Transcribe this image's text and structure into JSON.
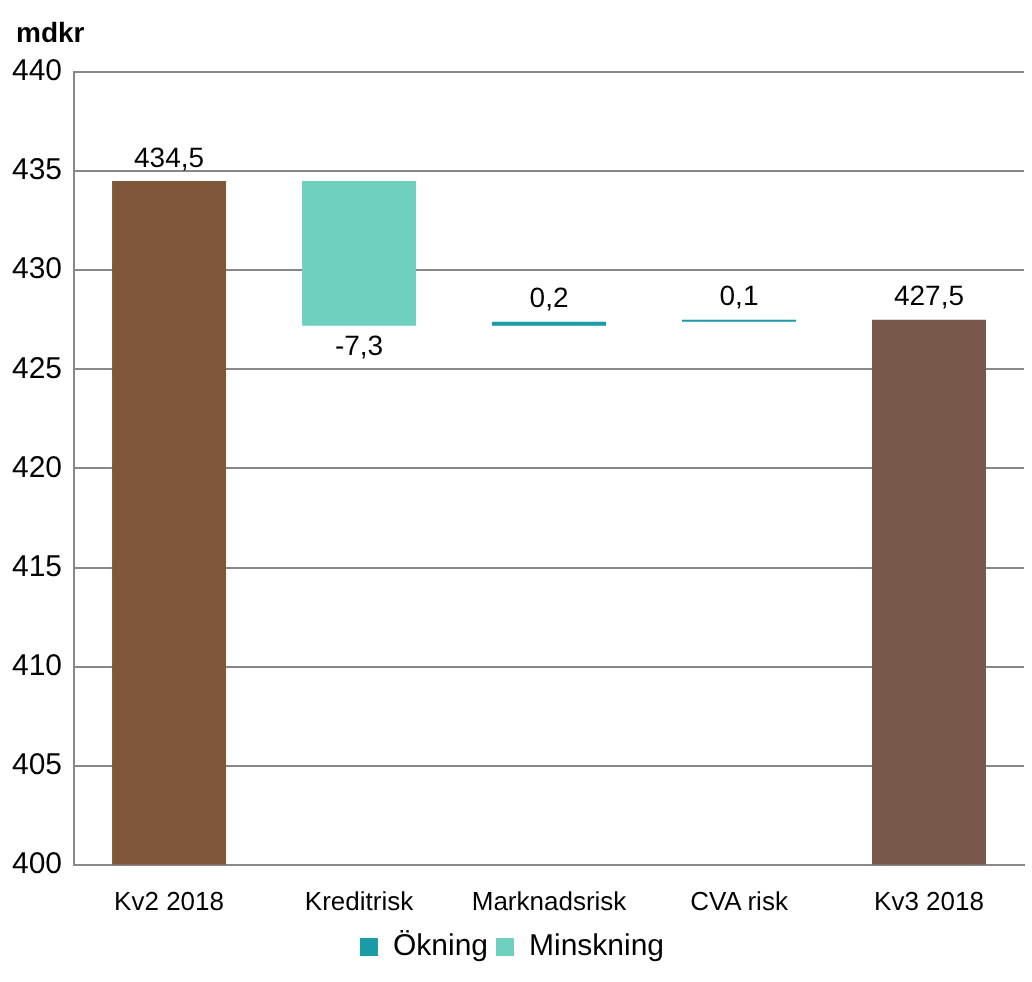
{
  "chart_data": {
    "type": "bar",
    "ylabel": "mdkr",
    "categories": [
      "Kv2 2018",
      "Kreditrisk",
      "Marknadsrisk",
      "CVA risk",
      "Kv3 2018"
    ],
    "series": [
      {
        "colors": [
          "#80573a",
          null,
          null,
          null,
          "#77584a"
        ],
        "values": [
          434.5,
          null,
          null,
          null,
          427.5
        ],
        "value_labels": [
          "434,5",
          null,
          null,
          null,
          "427,5"
        ]
      },
      {
        "name": "Ökning",
        "color": "#1b9aa8",
        "base": [
          null,
          null,
          427.2,
          427.4,
          null
        ],
        "values": [
          null,
          null,
          0.2,
          0.1,
          null
        ],
        "value_labels": [
          null,
          null,
          "0,2",
          "0,1",
          null
        ]
      },
      {
        "name": "Minskning",
        "color": "#70d0c0",
        "base": [
          null,
          434.5,
          null,
          null,
          null
        ],
        "values": [
          null,
          -7.3,
          null,
          null,
          null
        ],
        "value_labels": [
          null,
          "-7,3",
          null,
          null,
          null
        ]
      }
    ],
    "ylim": [
      400,
      440
    ],
    "yticks": [
      400,
      405,
      410,
      415,
      420,
      425,
      430,
      435,
      440
    ],
    "grid": "y",
    "legend": "bottom"
  }
}
